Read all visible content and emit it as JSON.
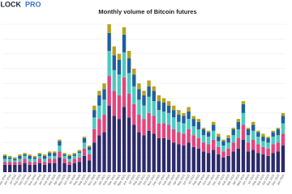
{
  "logo": {
    "block": "BLOCK",
    "pro": "PRO"
  },
  "chart_data": {
    "type": "stacked-bar",
    "title": "Monthly volume of Bitcoin futures",
    "categories": [
      "May 2019",
      "Jun 2019",
      "Jul 2019",
      "Aug 2019",
      "Sep 2019",
      "Oct 2019",
      "Nov 2019",
      "Dec 2019",
      "Jan 2020",
      "Feb 2020",
      "Mar 2020",
      "Apr 2020",
      "May 2020",
      "Jun 2020",
      "Jul 2020",
      "Aug 2020",
      "Sep 2020",
      "Oct 2020",
      "Nov 2020",
      "Dec 2020",
      "Jan 2021",
      "Feb 2021",
      "Mar 2021",
      "Apr 2021",
      "May 2021",
      "Jun 2021",
      "Jul 2021",
      "Aug 2021",
      "Sep 2021",
      "Oct 2021",
      "Nov 2021",
      "Dec 2021",
      "Jan 2022",
      "Feb 2022",
      "Mar 2022",
      "Apr 2022",
      "May 2022",
      "Jun 2022",
      "Jul 2022",
      "Aug 2022",
      "Sep 2022",
      "Oct 2022",
      "Nov 2022",
      "Dec 2022",
      "Jan 2023",
      "Feb 2023",
      "Mar 2023",
      "Apr 2023",
      "May 2023",
      "Jun 2023",
      "Jul 2023",
      "Aug 2023",
      "Sep 2023",
      "Oct 2023",
      "Nov 2023",
      "Dec 2023",
      "Jan 2024"
    ],
    "series": [
      {
        "color": "#2b2a6b",
        "values": [
          5,
          5,
          5,
          5,
          6,
          5,
          5,
          6,
          5,
          6,
          6,
          10,
          6,
          5,
          6,
          7,
          11,
          8,
          20,
          25,
          27,
          45,
          38,
          36,
          44,
          37,
          32,
          27,
          25,
          28,
          26,
          23,
          23,
          22,
          20,
          19,
          18,
          20,
          17,
          16,
          14,
          13,
          15,
          12,
          10,
          11,
          14,
          16,
          22,
          14,
          15,
          13,
          12,
          11,
          13,
          14,
          18
        ]
      },
      {
        "color": "#e2457c",
        "values": [
          2,
          2,
          2,
          2,
          3,
          2,
          2,
          3,
          2,
          3,
          3,
          4,
          3,
          2,
          3,
          3,
          5,
          4,
          9,
          11,
          12,
          20,
          17,
          16,
          20,
          16,
          14,
          12,
          11,
          12,
          12,
          10,
          10,
          10,
          9,
          8,
          8,
          9,
          8,
          7,
          6,
          6,
          7,
          5,
          4,
          5,
          6,
          7,
          10,
          6,
          7,
          6,
          5,
          5,
          6,
          6,
          8
        ]
      },
      {
        "color": "#4cc9c2",
        "values": [
          2,
          2,
          1,
          2,
          2,
          2,
          2,
          2,
          2,
          2,
          2,
          4,
          2,
          2,
          2,
          3,
          4,
          3,
          8,
          9,
          10,
          17,
          14,
          14,
          17,
          14,
          12,
          10,
          9,
          11,
          10,
          9,
          8,
          8,
          8,
          7,
          7,
          7,
          6,
          6,
          5,
          5,
          6,
          4,
          4,
          4,
          5,
          6,
          8,
          5,
          6,
          5,
          4,
          4,
          5,
          5,
          7
        ]
      },
      {
        "color": "#1f5f9e",
        "values": [
          2,
          1,
          1,
          2,
          1,
          2,
          1,
          1,
          2,
          2,
          2,
          3,
          1,
          2,
          1,
          1,
          3,
          2,
          5,
          7,
          7,
          12,
          10,
          10,
          12,
          10,
          8,
          7,
          7,
          7,
          7,
          6,
          6,
          5,
          5,
          5,
          5,
          5,
          5,
          5,
          4,
          3,
          4,
          3,
          3,
          3,
          4,
          5,
          6,
          4,
          4,
          3,
          3,
          3,
          3,
          4,
          5
        ]
      },
      {
        "color": "#b6a21e",
        "values": [
          1,
          1,
          1,
          1,
          1,
          1,
          1,
          1,
          1,
          1,
          1,
          1,
          1,
          1,
          1,
          1,
          1,
          1,
          3,
          3,
          4,
          6,
          6,
          4,
          5,
          5,
          4,
          4,
          3,
          4,
          3,
          4,
          3,
          3,
          3,
          3,
          2,
          3,
          2,
          2,
          1,
          1,
          2,
          2,
          1,
          2,
          1,
          2,
          2,
          1,
          2,
          1,
          2,
          1,
          1,
          1,
          2
        ]
      }
    ],
    "ylim": [
      0,
      100
    ],
    "yticks": [
      0,
      10,
      20,
      30,
      40,
      50,
      60,
      70,
      80,
      90,
      100
    ],
    "grid": true
  }
}
